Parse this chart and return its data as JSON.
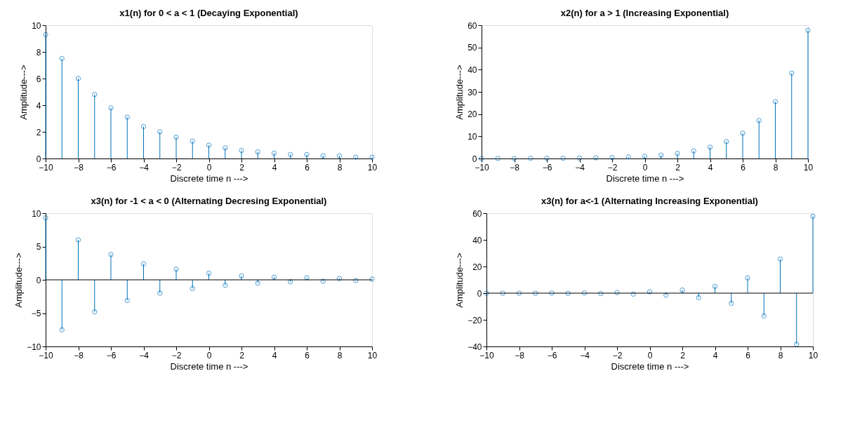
{
  "chart_data": [
    {
      "type": "lollipop",
      "title": "x1(n) for 0 < a < 1 (Decaying Exponential)",
      "xlabel": "Discrete time n --->",
      "ylabel": "Amplitude--->",
      "x": [
        -10,
        -9,
        -8,
        -7,
        -6,
        -5,
        -4,
        -3,
        -2,
        -1,
        0,
        1,
        2,
        3,
        4,
        5,
        6,
        7,
        8,
        9,
        10
      ],
      "xlim": [
        -10,
        10
      ],
      "xticks": [
        -10,
        -8,
        -6,
        -4,
        -2,
        0,
        2,
        4,
        6,
        8,
        10
      ],
      "ylim": [
        0,
        10
      ],
      "yticks": [
        0,
        2,
        4,
        6,
        8,
        10
      ],
      "marker": "circle",
      "grid": false,
      "series": [
        {
          "color": "#0072bd",
          "values": [
            9.3,
            7.5,
            6.0,
            4.8,
            3.8,
            3.1,
            2.4,
            2.0,
            1.6,
            1.3,
            1.0,
            0.8,
            0.6,
            0.5,
            0.4,
            0.3,
            0.3,
            0.2,
            0.2,
            0.1,
            0.1
          ]
        }
      ]
    },
    {
      "type": "lollipop",
      "title": "x2(n) for a > 1 (Increasing Exponential)",
      "xlabel": "Discrete time n --->",
      "ylabel": "Amplitude--->",
      "x": [
        -10,
        -9,
        -8,
        -7,
        -6,
        -5,
        -4,
        -3,
        -2,
        -1,
        0,
        1,
        2,
        3,
        4,
        5,
        6,
        7,
        8,
        9,
        10
      ],
      "xlim": [
        -10,
        10
      ],
      "xticks": [
        -10,
        -8,
        -6,
        -4,
        -2,
        0,
        2,
        4,
        6,
        8,
        10
      ],
      "ylim": [
        0,
        60
      ],
      "yticks": [
        0,
        10,
        20,
        30,
        40,
        50,
        60
      ],
      "marker": "circle",
      "grid": false,
      "series": [
        {
          "color": "#0072bd",
          "values": [
            0.0,
            0.0,
            0.0,
            0.1,
            0.1,
            0.1,
            0.2,
            0.3,
            0.4,
            0.7,
            1.0,
            1.5,
            2.3,
            3.4,
            5.1,
            7.6,
            11.4,
            17.1,
            25.6,
            38.4,
            57.7
          ]
        }
      ]
    },
    {
      "type": "lollipop",
      "title": "x3(n) for -1 < a < 0 (Alternating Decresing Exponential)",
      "xlabel": "Discrete time n --->",
      "ylabel": "Amplitude--->",
      "x": [
        -10,
        -9,
        -8,
        -7,
        -6,
        -5,
        -4,
        -3,
        -2,
        -1,
        0,
        1,
        2,
        3,
        4,
        5,
        6,
        7,
        8,
        9,
        10
      ],
      "xlim": [
        -10,
        10
      ],
      "xticks": [
        -10,
        -8,
        -6,
        -4,
        -2,
        0,
        2,
        4,
        6,
        8,
        10
      ],
      "ylim": [
        -10,
        10
      ],
      "yticks": [
        -10,
        -5,
        0,
        5,
        10
      ],
      "marker": "circle",
      "grid": false,
      "ref_lines": [
        {
          "axis": "y",
          "value": 0,
          "color": "#000000"
        }
      ],
      "series": [
        {
          "color": "#0072bd",
          "values": [
            9.3,
            -7.5,
            6.0,
            -4.8,
            3.8,
            -3.1,
            2.4,
            -2.0,
            1.6,
            -1.3,
            1.0,
            -0.8,
            0.6,
            -0.5,
            0.4,
            -0.3,
            0.3,
            -0.2,
            0.2,
            -0.1,
            0.1
          ]
        }
      ]
    },
    {
      "type": "lollipop",
      "title": "x3(n) for a<-1 (Alternating Increasing Exponential)",
      "xlabel": "Discrete time n --->",
      "ylabel": "Amplitude--->",
      "x": [
        -10,
        -9,
        -8,
        -7,
        -6,
        -5,
        -4,
        -3,
        -2,
        -1,
        0,
        1,
        2,
        3,
        4,
        5,
        6,
        7,
        8,
        9,
        10
      ],
      "xlim": [
        -10,
        10
      ],
      "xticks": [
        -10,
        -8,
        -6,
        -4,
        -2,
        0,
        2,
        4,
        6,
        8,
        10
      ],
      "ylim": [
        -40,
        60
      ],
      "yticks": [
        -40,
        -20,
        0,
        20,
        40,
        60
      ],
      "marker": "circle",
      "grid": false,
      "ref_lines": [
        {
          "axis": "y",
          "value": 0,
          "color": "#000000"
        }
      ],
      "series": [
        {
          "color": "#0072bd",
          "values": [
            0.0,
            0.0,
            0.0,
            -0.1,
            0.1,
            -0.1,
            0.2,
            -0.3,
            0.4,
            -0.7,
            1.0,
            -1.5,
            2.3,
            -3.4,
            5.1,
            -7.6,
            11.4,
            -17.1,
            25.6,
            -38.4,
            57.7
          ]
        }
      ]
    }
  ]
}
